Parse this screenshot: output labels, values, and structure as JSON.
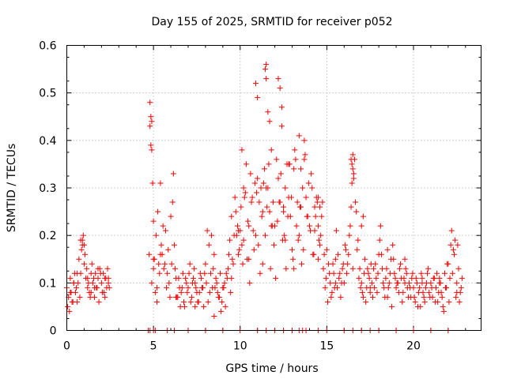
{
  "chart_data": {
    "type": "scatter",
    "title": "Day 155 of 2025, SRMTID for receiver p052",
    "xlabel": "GPS time / hours",
    "ylabel": "SRMTID / TECUs",
    "xlim": [
      0,
      23.9
    ],
    "ylim": [
      0,
      0.6
    ],
    "xticks": [
      0,
      5,
      10,
      15,
      20
    ],
    "xtick_labels": [
      "0",
      "5",
      "10",
      "15",
      "20"
    ],
    "yticks": [
      0,
      0.1,
      0.2,
      0.3,
      0.4,
      0.5,
      0.6
    ],
    "ytick_labels": [
      "0",
      "0.1",
      "0.2",
      "0.3",
      "0.4",
      "0.5",
      "0.6"
    ],
    "grid": true,
    "marker": "+",
    "marker_color": "#ff0000",
    "series": [
      {
        "name": "SRMTID",
        "x": [
          0.0,
          0.1,
          0.2,
          0.3,
          0.4,
          0.5,
          0.6,
          0.7,
          0.8,
          0.9,
          1.0,
          1.1,
          1.2,
          1.3,
          1.4,
          1.5,
          1.6,
          1.7,
          1.8,
          1.9,
          2.0,
          2.1,
          2.2,
          2.3,
          2.4,
          0.05,
          0.25,
          0.45,
          0.65,
          0.85,
          0.95,
          1.05,
          1.15,
          1.35,
          1.55,
          1.75,
          1.95,
          2.15,
          2.35,
          0.15,
          0.35,
          0.55,
          0.75,
          0.9,
          1.0,
          1.25,
          1.45,
          1.65,
          1.85,
          2.05,
          2.25,
          2.45,
          4.75,
          4.8,
          4.85,
          4.9,
          4.95,
          5.0,
          5.1,
          5.2,
          5.3,
          5.4,
          5.5,
          5.6,
          5.7,
          5.8,
          5.9,
          6.0,
          6.1,
          6.2,
          6.3,
          6.4,
          6.5,
          6.6,
          6.7,
          6.8,
          6.9,
          7.0,
          7.1,
          7.2,
          7.3,
          7.4,
          7.5,
          7.6,
          7.7,
          7.8,
          7.9,
          8.0,
          8.1,
          8.2,
          8.3,
          8.4,
          8.5,
          8.6,
          8.7,
          8.8,
          8.9,
          9.0,
          9.1,
          9.2,
          9.3,
          9.4,
          9.5,
          9.6,
          9.7,
          9.8,
          9.9,
          4.8,
          4.85,
          4.9,
          5.0,
          5.05,
          5.15,
          5.25,
          5.35,
          5.45,
          5.55,
          5.65,
          5.75,
          5.85,
          5.95,
          6.05,
          6.15,
          6.25,
          6.35,
          6.45,
          6.55,
          6.65,
          6.75,
          6.85,
          6.95,
          7.05,
          7.15,
          7.25,
          7.35,
          7.45,
          7.55,
          7.65,
          7.75,
          7.85,
          7.95,
          8.05,
          8.15,
          8.25,
          8.35,
          8.45,
          8.55,
          8.65,
          8.75,
          8.85,
          8.95,
          9.05,
          9.15,
          9.25,
          9.35,
          9.45,
          9.55,
          9.65,
          9.75,
          9.85,
          9.95,
          10.0,
          10.1,
          10.2,
          10.3,
          10.4,
          10.5,
          10.6,
          10.7,
          10.8,
          10.9,
          11.0,
          11.1,
          11.2,
          11.3,
          11.4,
          11.5,
          11.6,
          11.7,
          11.8,
          11.9,
          12.0,
          12.1,
          12.2,
          12.3,
          12.4,
          12.5,
          12.6,
          12.7,
          12.8,
          12.9,
          13.0,
          13.1,
          13.2,
          13.3,
          13.4,
          13.5,
          13.6,
          13.7,
          13.8,
          13.9,
          14.0,
          14.1,
          14.2,
          14.3,
          14.4,
          14.5,
          14.6,
          14.7,
          14.8,
          14.9,
          10.05,
          10.15,
          10.25,
          10.35,
          10.45,
          10.55,
          10.65,
          10.75,
          10.85,
          10.95,
          11.05,
          11.15,
          11.25,
          11.35,
          11.45,
          11.55,
          11.65,
          11.75,
          11.85,
          11.95,
          12.05,
          12.15,
          12.25,
          12.35,
          12.45,
          12.55,
          12.65,
          12.75,
          12.85,
          12.95,
          13.05,
          13.15,
          13.25,
          13.35,
          13.45,
          13.55,
          13.65,
          13.75,
          13.85,
          13.95,
          14.05,
          14.15,
          14.25,
          14.35,
          14.45,
          14.55,
          14.65,
          14.75,
          14.85,
          14.95,
          11.5,
          11.45,
          12.2,
          12.3,
          10.9,
          11.0,
          11.6,
          11.7,
          12.4,
          13.4,
          13.7,
          12.8,
          10.1,
          9.9,
          10.2,
          11.3,
          11.8,
          12.6,
          13.1,
          14.3,
          14.5,
          14.6,
          15.0,
          15.1,
          15.2,
          15.3,
          15.4,
          15.5,
          15.6,
          15.7,
          15.8,
          15.9,
          16.0,
          16.1,
          16.2,
          16.3,
          16.4,
          16.5,
          16.6,
          16.7,
          16.8,
          16.9,
          17.0,
          17.1,
          17.2,
          17.3,
          17.4,
          17.5,
          17.6,
          17.7,
          17.8,
          17.9,
          18.0,
          18.1,
          18.2,
          18.3,
          18.4,
          18.5,
          18.6,
          18.7,
          18.8,
          18.9,
          19.0,
          19.1,
          19.2,
          19.3,
          19.4,
          19.5,
          19.6,
          19.7,
          19.8,
          19.9,
          15.05,
          15.15,
          15.25,
          15.35,
          15.45,
          15.55,
          15.65,
          15.75,
          15.85,
          15.95,
          16.05,
          16.15,
          16.25,
          16.35,
          16.45,
          16.55,
          16.65,
          16.75,
          16.85,
          16.95,
          17.05,
          17.15,
          17.25,
          17.35,
          17.45,
          17.55,
          17.65,
          17.75,
          17.85,
          17.95,
          18.05,
          18.15,
          18.25,
          18.35,
          18.45,
          18.55,
          18.65,
          18.75,
          18.85,
          18.95,
          19.05,
          19.15,
          19.25,
          19.35,
          19.45,
          19.55,
          19.65,
          19.75,
          19.85,
          19.95,
          16.4,
          16.45,
          16.5,
          16.55,
          17.0,
          17.1,
          20.0,
          20.1,
          20.2,
          20.3,
          20.4,
          20.5,
          20.6,
          20.7,
          20.8,
          20.9,
          21.0,
          21.1,
          21.2,
          21.3,
          21.4,
          21.5,
          21.6,
          21.7,
          21.8,
          21.9,
          22.0,
          22.1,
          22.2,
          22.3,
          22.4,
          22.5,
          22.6,
          22.7,
          22.8,
          20.05,
          20.15,
          20.25,
          20.35,
          20.45,
          20.55,
          20.65,
          20.75,
          20.85,
          20.95,
          21.05,
          21.15,
          21.25,
          21.35,
          21.45,
          21.55,
          21.65,
          21.75,
          21.85,
          21.95,
          22.05,
          22.15,
          22.25,
          22.35,
          22.45,
          22.55,
          22.65,
          22.75,
          0.2,
          0.4,
          0.6,
          0.8,
          1.2,
          1.4,
          1.6,
          1.8,
          2.2,
          2.4,
          4.9,
          5.0,
          5.2,
          5.4,
          6.3,
          7.4,
          8.5,
          9.5,
          10.5,
          11.5,
          12.5,
          13.5,
          14.5,
          15.5,
          16.5,
          17.5,
          18.5,
          19.5,
          20.5,
          21.5,
          22.5
        ],
        "y": [
          0.09,
          0.07,
          0.11,
          0.06,
          0.1,
          0.08,
          0.12,
          0.15,
          0.19,
          0.18,
          0.14,
          0.11,
          0.09,
          0.08,
          0.12,
          0.1,
          0.07,
          0.09,
          0.11,
          0.13,
          0.1,
          0.12,
          0.11,
          0.09,
          0.1,
          0.05,
          0.08,
          0.12,
          0.1,
          0.17,
          0.2,
          0.16,
          0.13,
          0.07,
          0.11,
          0.09,
          0.12,
          0.08,
          0.13,
          0.04,
          0.06,
          0.09,
          0.07,
          0.19,
          0.18,
          0.1,
          0.14,
          0.12,
          0.06,
          0.08,
          0.11,
          0.09,
          0.16,
          0.48,
          0.45,
          0.44,
          0.31,
          0.15,
          0.08,
          0.06,
          0.14,
          0.31,
          0.16,
          0.13,
          0.21,
          0.12,
          0.1,
          0.24,
          0.27,
          0.18,
          0.11,
          0.07,
          0.09,
          0.08,
          0.12,
          0.05,
          0.1,
          0.09,
          0.14,
          0.07,
          0.11,
          0.1,
          0.08,
          0.06,
          0.12,
          0.09,
          0.05,
          0.14,
          0.21,
          0.18,
          0.12,
          0.09,
          0.16,
          0.11,
          0.08,
          0.07,
          0.04,
          0.09,
          0.1,
          0.12,
          0.13,
          0.19,
          0.24,
          0.14,
          0.28,
          0.2,
          0.21,
          0.43,
          0.39,
          0.38,
          0.23,
          0.15,
          0.2,
          0.25,
          0.12,
          0.18,
          0.22,
          0.14,
          0.09,
          0.17,
          0.07,
          0.14,
          0.33,
          0.13,
          0.07,
          0.11,
          0.05,
          0.09,
          0.06,
          0.11,
          0.08,
          0.12,
          0.06,
          0.1,
          0.13,
          0.09,
          0.06,
          0.08,
          0.11,
          0.09,
          0.12,
          0.1,
          0.06,
          0.08,
          0.2,
          0.13,
          0.09,
          0.1,
          0.07,
          0.12,
          0.06,
          0.09,
          0.05,
          0.11,
          0.16,
          0.08,
          0.15,
          0.2,
          0.25,
          0.22,
          0.17,
          0.21,
          0.38,
          0.3,
          0.29,
          0.15,
          0.22,
          0.33,
          0.28,
          0.17,
          0.2,
          0.32,
          0.27,
          0.3,
          0.25,
          0.34,
          0.56,
          0.3,
          0.25,
          0.38,
          0.27,
          0.22,
          0.36,
          0.32,
          0.27,
          0.47,
          0.26,
          0.3,
          0.35,
          0.28,
          0.24,
          0.17,
          0.34,
          0.36,
          0.27,
          0.2,
          0.26,
          0.3,
          0.4,
          0.28,
          0.24,
          0.22,
          0.33,
          0.16,
          0.26,
          0.28,
          0.22,
          0.18,
          0.24,
          0.13,
          0.09,
          0.26,
          0.14,
          0.28,
          0.35,
          0.23,
          0.1,
          0.27,
          0.21,
          0.31,
          0.29,
          0.18,
          0.12,
          0.24,
          0.31,
          0.2,
          0.26,
          0.35,
          0.13,
          0.22,
          0.18,
          0.11,
          0.23,
          0.27,
          0.33,
          0.19,
          0.2,
          0.13,
          0.24,
          0.35,
          0.28,
          0.15,
          0.38,
          0.22,
          0.19,
          0.26,
          0.14,
          0.17,
          0.37,
          0.24,
          0.31,
          0.21,
          0.3,
          0.16,
          0.24,
          0.27,
          0.19,
          0.2,
          0.27,
          0.16,
          0.11,
          0.53,
          0.55,
          0.53,
          0.51,
          0.52,
          0.49,
          0.46,
          0.44,
          0.43,
          0.41,
          0.36,
          0.35,
          0.18,
          0.16,
          0.19,
          0.14,
          0.22,
          0.19,
          0.13,
          0.21,
          0.28,
          0.26,
          0.17,
          0.14,
          0.1,
          0.08,
          0.12,
          0.15,
          0.09,
          0.11,
          0.07,
          0.13,
          0.1,
          0.17,
          0.14,
          0.2,
          0.26,
          0.37,
          0.36,
          0.25,
          0.19,
          0.13,
          0.1,
          0.07,
          0.15,
          0.09,
          0.12,
          0.08,
          0.1,
          0.13,
          0.14,
          0.08,
          0.16,
          0.22,
          0.13,
          0.09,
          0.11,
          0.07,
          0.1,
          0.15,
          0.18,
          0.12,
          0.09,
          0.1,
          0.13,
          0.11,
          0.08,
          0.1,
          0.12,
          0.07,
          0.09,
          0.11,
          0.06,
          0.12,
          0.07,
          0.14,
          0.09,
          0.21,
          0.16,
          0.12,
          0.1,
          0.14,
          0.18,
          0.12,
          0.16,
          0.22,
          0.31,
          0.33,
          0.27,
          0.17,
          0.11,
          0.09,
          0.08,
          0.12,
          0.06,
          0.13,
          0.11,
          0.14,
          0.07,
          0.09,
          0.11,
          0.12,
          0.19,
          0.16,
          0.1,
          0.07,
          0.13,
          0.09,
          0.12,
          0.05,
          0.15,
          0.11,
          0.1,
          0.08,
          0.14,
          0.06,
          0.11,
          0.13,
          0.09,
          0.1,
          0.07,
          0.12,
          0.36,
          0.35,
          0.34,
          0.32,
          0.22,
          0.24,
          0.09,
          0.06,
          0.1,
          0.08,
          0.05,
          0.11,
          0.07,
          0.09,
          0.12,
          0.08,
          0.1,
          0.07,
          0.11,
          0.09,
          0.06,
          0.1,
          0.08,
          0.05,
          0.12,
          0.09,
          0.14,
          0.11,
          0.21,
          0.17,
          0.19,
          0.1,
          0.13,
          0.08,
          0.11,
          0.07,
          0.11,
          0.05,
          0.09,
          0.12,
          0.08,
          0.06,
          0.1,
          0.13,
          0.07,
          0.09,
          0.11,
          0.06,
          0.12,
          0.08,
          0.1,
          0.07,
          0.04,
          0.09,
          0.14,
          0.06,
          0.18,
          0.12,
          0.16,
          0.07,
          0.18,
          0.06,
          0.09,
          0.08,
          0.1,
          0.06,
          0.12,
          0.11,
          0.08,
          0.09,
          0.13,
          0.07,
          0.11,
          0.1,
          0.13,
          0.09,
          0.16,
          0.07,
          0.05,
          0.03,
          0.11,
          0.15,
          0.3,
          0.25,
          0.34,
          0.15,
          0.1,
          0.13,
          0.09,
          0.17,
          0.15,
          0.1,
          0.11,
          0.08
        ]
      }
    ],
    "zero_marks_x": [
      4.7,
      4.8,
      5.0,
      5.1,
      5.8,
      6.2,
      7.0,
      8.0,
      9.0,
      10.0,
      11.0,
      11.5,
      12.0,
      12.5,
      13.0,
      13.4,
      13.6,
      13.8,
      14.5,
      15.0,
      16.0,
      16.5,
      17.0,
      17.5,
      18.0,
      19.0,
      20.0,
      21.0,
      22.0
    ]
  }
}
